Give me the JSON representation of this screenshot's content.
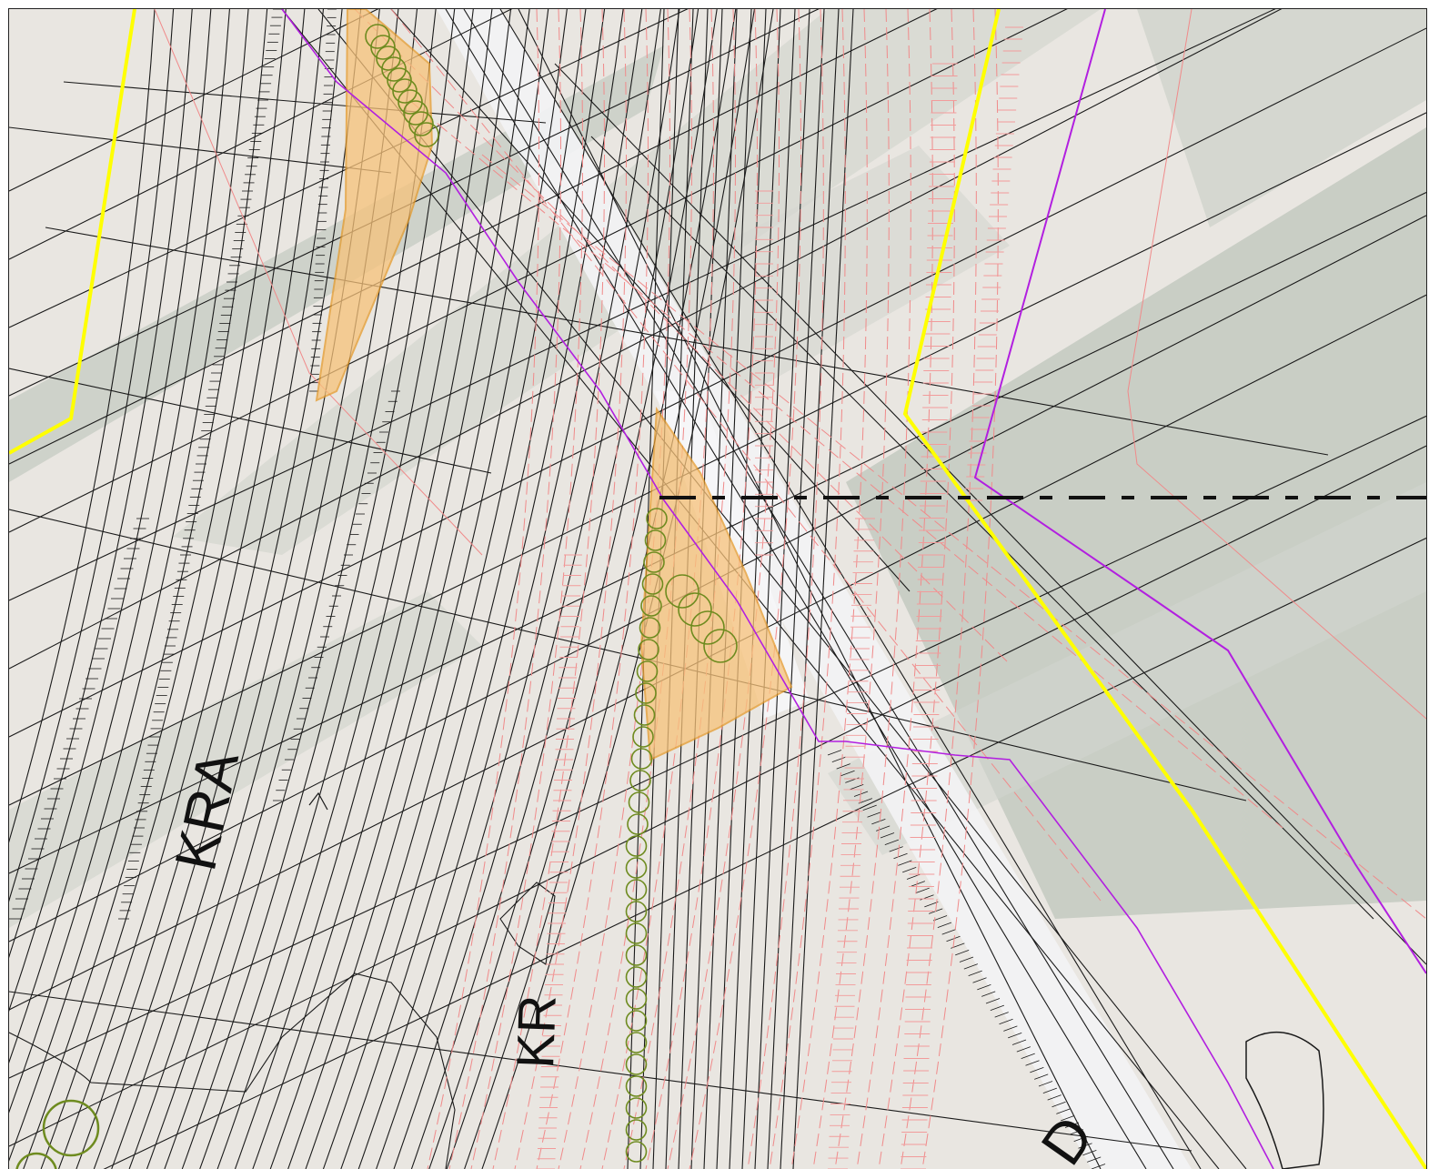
{
  "map": {
    "labels": [
      {
        "id": "kra",
        "text": "KRA"
      },
      {
        "id": "kr",
        "text": "KR"
      },
      {
        "id": "d",
        "text": "D"
      },
      {
        "id": "dashed_boundary",
        "text": "-- — - — — - — -- -- ---"
      }
    ],
    "colors": {
      "background": "#e9e6e1",
      "terrain_shadow": "#c7ccc3",
      "line_black": "#1a1a1a",
      "line_red_dashed": "#f08a8a",
      "boundary_yellow": "#ffff00",
      "boundary_purple": "#b21fe0",
      "fill_orange": "#f7c27a",
      "tree_green": "#6e8b1f",
      "road_white": "#f4f4f6"
    },
    "layers": [
      "terrain",
      "roads",
      "red-dashed-utilities",
      "boundaries",
      "vegetation",
      "orange-areas",
      "labels"
    ]
  }
}
